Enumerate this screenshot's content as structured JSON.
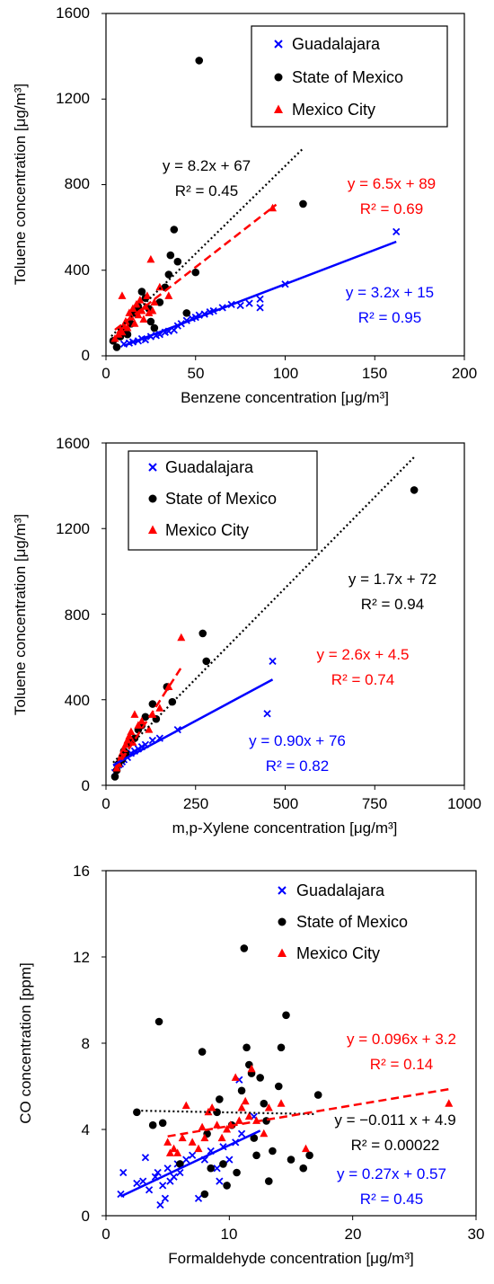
{
  "series_styles": {
    "Guadalajara": {
      "color": "#0000ff",
      "marker": "x-cross",
      "trendline": "solid"
    },
    "State of Mexico": {
      "color": "#000000",
      "marker": "filled-circle",
      "trendline": "dotted"
    },
    "Mexico City": {
      "color": "#ff0000",
      "marker": "filled-triangle",
      "trendline": "dashed"
    }
  },
  "chart_data": [
    {
      "type": "scatter",
      "xlabel": "Benzene concentration [μg/m³]",
      "ylabel": "Toluene concentration [μg/m³]",
      "xlim": [
        0,
        200
      ],
      "ylim": [
        0,
        1600
      ],
      "xticks": [
        "0",
        "50",
        "100",
        "150",
        "200"
      ],
      "yticks": [
        "0",
        "400",
        "800",
        "1200",
        "1600"
      ],
      "grid": false,
      "legend": {
        "position": "top-right",
        "entries": [
          "Guadalajara",
          "State of Mexico",
          "Mexico City"
        ]
      },
      "series": [
        {
          "name": "Guadalajara",
          "trend": {
            "slope": 3.2,
            "intercept": 15,
            "x_range": [
              10,
              162
            ]
          },
          "equation": "y = 3.2x + 15",
          "r2": "R² = 0.95",
          "points": [
            [
              10,
              55
            ],
            [
              13,
              60
            ],
            [
              15,
              65
            ],
            [
              18,
              70
            ],
            [
              20,
              80
            ],
            [
              22,
              75
            ],
            [
              25,
              90
            ],
            [
              28,
              95
            ],
            [
              30,
              100
            ],
            [
              33,
              110
            ],
            [
              35,
              115
            ],
            [
              38,
              120
            ],
            [
              40,
              140
            ],
            [
              42,
              150
            ],
            [
              45,
              165
            ],
            [
              48,
              175
            ],
            [
              50,
              180
            ],
            [
              52,
              190
            ],
            [
              55,
              195
            ],
            [
              58,
              205
            ],
            [
              60,
              210
            ],
            [
              65,
              225
            ],
            [
              70,
              240
            ],
            [
              75,
              235
            ],
            [
              80,
              245
            ],
            [
              86,
              225
            ],
            [
              86,
              265
            ],
            [
              100,
              335
            ],
            [
              162,
              580
            ]
          ]
        },
        {
          "name": "State of Mexico",
          "trend": {
            "slope": 8.2,
            "intercept": 67,
            "x_range": [
              3,
              110
            ]
          },
          "equation": "y = 8.2x + 67",
          "r2": "R² = 0.45",
          "points": [
            [
              4,
              70
            ],
            [
              6,
              40
            ],
            [
              8,
              90
            ],
            [
              10,
              120
            ],
            [
              12,
              100
            ],
            [
              14,
              150
            ],
            [
              16,
              200
            ],
            [
              18,
              230
            ],
            [
              20,
              300
            ],
            [
              22,
              270
            ],
            [
              24,
              220
            ],
            [
              25,
              160
            ],
            [
              27,
              130
            ],
            [
              30,
              250
            ],
            [
              33,
              320
            ],
            [
              35,
              380
            ],
            [
              36,
              470
            ],
            [
              38,
              590
            ],
            [
              40,
              440
            ],
            [
              45,
              200
            ],
            [
              50,
              390
            ],
            [
              52,
              1380
            ],
            [
              110,
              710
            ]
          ]
        },
        {
          "name": "Mexico City",
          "trend": {
            "slope": 6.5,
            "intercept": 89,
            "x_range": [
              5,
              95
            ]
          },
          "equation": "y = 6.5x + 89",
          "r2": "R² = 0.69",
          "points": [
            [
              5,
              80
            ],
            [
              7,
              100
            ],
            [
              8,
              120
            ],
            [
              9,
              110
            ],
            [
              10,
              140
            ],
            [
              11,
              160
            ],
            [
              12,
              130
            ],
            [
              13,
              200
            ],
            [
              14,
              180
            ],
            [
              15,
              220
            ],
            [
              16,
              150
            ],
            [
              17,
              240
            ],
            [
              18,
              190
            ],
            [
              19,
              260
            ],
            [
              20,
              210
            ],
            [
              21,
              170
            ],
            [
              22,
              230
            ],
            [
              23,
              280
            ],
            [
              24,
              200
            ],
            [
              25,
              450
            ],
            [
              26,
              210
            ],
            [
              27,
              250
            ],
            [
              30,
              320
            ],
            [
              9,
              280
            ],
            [
              35,
              280
            ],
            [
              93,
              690
            ]
          ]
        }
      ]
    },
    {
      "type": "scatter",
      "xlabel": "m,p-Xylene concentration [μg/m³]",
      "ylabel": "Toluene concentration [μg/m³]",
      "xlim": [
        0,
        1000
      ],
      "ylim": [
        0,
        1600
      ],
      "xticks": [
        "0",
        "250",
        "500",
        "750",
        "1000"
      ],
      "yticks": [
        "0",
        "400",
        "800",
        "1200",
        "1600"
      ],
      "grid": false,
      "legend": {
        "position": "top-left",
        "entries": [
          "Guadalajara",
          "State of Mexico",
          "Mexico City"
        ]
      },
      "series": [
        {
          "name": "Guadalajara",
          "trend": {
            "slope": 0.9,
            "intercept": 76,
            "x_range": [
              20,
              465
            ]
          },
          "equation": "y = 0.90x + 76",
          "r2": "R² = 0.82",
          "points": [
            [
              25,
              60
            ],
            [
              30,
              80
            ],
            [
              35,
              95
            ],
            [
              40,
              100
            ],
            [
              45,
              110
            ],
            [
              50,
              120
            ],
            [
              60,
              130
            ],
            [
              70,
              150
            ],
            [
              80,
              160
            ],
            [
              90,
              170
            ],
            [
              100,
              180
            ],
            [
              110,
              190
            ],
            [
              130,
              210
            ],
            [
              150,
              220
            ],
            [
              200,
              260
            ],
            [
              450,
              335
            ],
            [
              465,
              580
            ]
          ]
        },
        {
          "name": "State of Mexico",
          "trend": {
            "slope": 1.7,
            "intercept": 72,
            "x_range": [
              20,
              860
            ]
          },
          "equation": "y = 1.7x + 72",
          "r2": "R² = 0.94",
          "points": [
            [
              25,
              40
            ],
            [
              30,
              70
            ],
            [
              35,
              100
            ],
            [
              45,
              120
            ],
            [
              50,
              160
            ],
            [
              55,
              150
            ],
            [
              65,
              200
            ],
            [
              80,
              220
            ],
            [
              90,
              260
            ],
            [
              100,
              280
            ],
            [
              110,
              320
            ],
            [
              130,
              380
            ],
            [
              140,
              310
            ],
            [
              170,
              460
            ],
            [
              185,
              390
            ],
            [
              270,
              710
            ],
            [
              280,
              580
            ],
            [
              860,
              1380
            ]
          ]
        },
        {
          "name": "Mexico City",
          "trend": {
            "slope": 2.6,
            "intercept": 4.5,
            "x_range": [
              25,
              210
            ]
          },
          "equation": "y = 2.6x + 4.5",
          "r2": "R² = 0.74",
          "points": [
            [
              30,
              80
            ],
            [
              35,
              100
            ],
            [
              40,
              130
            ],
            [
              45,
              150
            ],
            [
              50,
              170
            ],
            [
              55,
              190
            ],
            [
              60,
              210
            ],
            [
              65,
              230
            ],
            [
              70,
              250
            ],
            [
              75,
              200
            ],
            [
              80,
              330
            ],
            [
              90,
              280
            ],
            [
              100,
              300
            ],
            [
              120,
              260
            ],
            [
              130,
              330
            ],
            [
              150,
              360
            ],
            [
              175,
              460
            ],
            [
              210,
              690
            ]
          ]
        }
      ]
    },
    {
      "type": "scatter",
      "xlabel": "Formaldehyde concentration [μg/m³]",
      "ylabel": "CO concentration [ppm]",
      "xlim": [
        0,
        30
      ],
      "ylim": [
        0,
        16
      ],
      "xticks": [
        "0",
        "10",
        "20",
        "30"
      ],
      "yticks": [
        "0",
        "4",
        "8",
        "12",
        "16"
      ],
      "grid": false,
      "legend": {
        "position": "top-right",
        "entries": [
          "Guadalajara",
          "State of Mexico",
          "Mexico City"
        ]
      },
      "series": [
        {
          "name": "Guadalajara",
          "trend": {
            "slope": 0.27,
            "intercept": 0.57,
            "x_range": [
              1.2,
              12.5
            ]
          },
          "equation": "y = 0.27x + 0.57",
          "r2": "R² = 0.45",
          "points": [
            [
              1.2,
              1.0
            ],
            [
              1.4,
              2.0
            ],
            [
              2.5,
              1.5
            ],
            [
              3.0,
              1.6
            ],
            [
              3.2,
              2.7
            ],
            [
              3.5,
              1.2
            ],
            [
              4.0,
              1.8
            ],
            [
              4.2,
              2.0
            ],
            [
              4.4,
              0.5
            ],
            [
              4.6,
              1.4
            ],
            [
              4.8,
              0.8
            ],
            [
              5.0,
              2.2
            ],
            [
              5.2,
              1.6
            ],
            [
              5.5,
              1.8
            ],
            [
              5.8,
              2.4
            ],
            [
              6.0,
              2.0
            ],
            [
              6.5,
              2.6
            ],
            [
              7.0,
              2.8
            ],
            [
              7.5,
              0.8
            ],
            [
              8.0,
              2.6
            ],
            [
              8.5,
              3.0
            ],
            [
              9.0,
              2.2
            ],
            [
              9.2,
              1.6
            ],
            [
              9.5,
              3.2
            ],
            [
              10.0,
              2.6
            ],
            [
              10.5,
              3.4
            ],
            [
              10.8,
              6.3
            ],
            [
              11.0,
              3.8
            ],
            [
              12.0,
              4.6
            ]
          ]
        },
        {
          "name": "State of Mexico",
          "trend": {
            "slope": -0.011,
            "intercept": 4.9,
            "x_range": [
              2.5,
              17
            ]
          },
          "equation": "y = −0.011 x + 4.9",
          "r2": "R² = 0.00022",
          "points": [
            [
              2.5,
              4.8
            ],
            [
              3.8,
              4.2
            ],
            [
              4.3,
              9.0
            ],
            [
              4.6,
              4.3
            ],
            [
              6.0,
              2.4
            ],
            [
              7.8,
              7.6
            ],
            [
              8.0,
              1.0
            ],
            [
              8.2,
              3.8
            ],
            [
              8.5,
              2.2
            ],
            [
              9.0,
              4.8
            ],
            [
              9.2,
              5.4
            ],
            [
              9.5,
              2.4
            ],
            [
              9.8,
              1.4
            ],
            [
              10.2,
              4.2
            ],
            [
              10.6,
              2.0
            ],
            [
              11.0,
              5.8
            ],
            [
              11.2,
              12.4
            ],
            [
              11.4,
              7.8
            ],
            [
              11.6,
              7.0
            ],
            [
              11.8,
              6.6
            ],
            [
              12.0,
              3.6
            ],
            [
              12.2,
              2.8
            ],
            [
              12.5,
              6.4
            ],
            [
              12.8,
              5.2
            ],
            [
              13.0,
              4.4
            ],
            [
              13.2,
              1.6
            ],
            [
              13.5,
              3.0
            ],
            [
              14.0,
              6.0
            ],
            [
              14.2,
              7.8
            ],
            [
              14.6,
              9.3
            ],
            [
              15.0,
              2.6
            ],
            [
              16.0,
              2.2
            ],
            [
              16.5,
              2.8
            ],
            [
              17.2,
              5.6
            ]
          ]
        },
        {
          "name": "Mexico City",
          "trend": {
            "slope": 0.096,
            "intercept": 3.2,
            "x_range": [
              5,
              27.8
            ]
          },
          "equation": "y = 0.096x + 3.2",
          "r2": "R² = 0.14",
          "points": [
            [
              5.0,
              3.4
            ],
            [
              5.2,
              2.9
            ],
            [
              5.5,
              3.1
            ],
            [
              5.8,
              2.9
            ],
            [
              6.2,
              3.6
            ],
            [
              6.5,
              5.1
            ],
            [
              7.0,
              3.4
            ],
            [
              7.5,
              3.1
            ],
            [
              7.8,
              4.1
            ],
            [
              8.0,
              3.6
            ],
            [
              8.3,
              4.8
            ],
            [
              8.6,
              5.0
            ],
            [
              9.0,
              4.2
            ],
            [
              9.4,
              3.6
            ],
            [
              9.8,
              4.0
            ],
            [
              10.1,
              4.2
            ],
            [
              10.5,
              6.4
            ],
            [
              10.8,
              4.4
            ],
            [
              11.0,
              5.0
            ],
            [
              11.3,
              5.3
            ],
            [
              11.6,
              4.6
            ],
            [
              11.8,
              6.8
            ],
            [
              12.2,
              4.4
            ],
            [
              12.8,
              3.8
            ],
            [
              13.2,
              5.0
            ],
            [
              14.2,
              5.2
            ],
            [
              16.2,
              3.1
            ],
            [
              27.8,
              5.2
            ]
          ]
        }
      ]
    }
  ]
}
